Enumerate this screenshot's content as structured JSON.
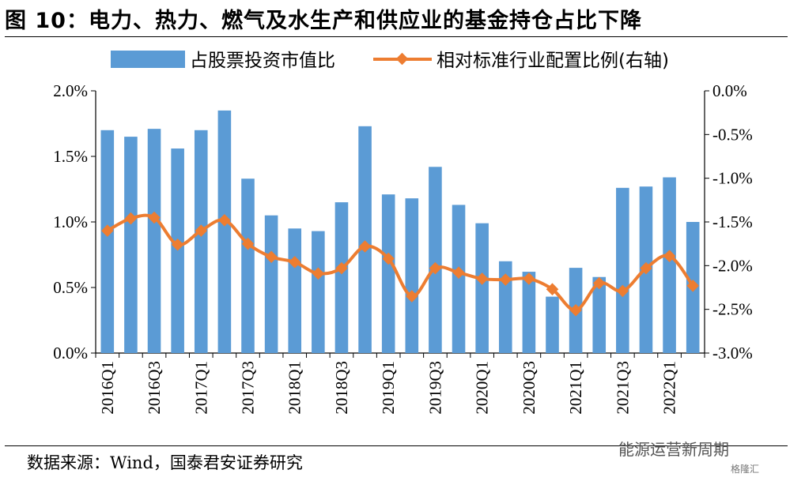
{
  "title": "图 10：电力、热力、燃气及水生产和供应业的基金持仓占比下降",
  "source": "数据来源：Wind，国泰君安证券研究",
  "watermark": "能源运营新周期",
  "watermark_logo": "格隆汇",
  "chart_data": {
    "type": "bar",
    "categories": [
      "2016Q1",
      "2016Q2",
      "2016Q3",
      "2016Q4",
      "2017Q1",
      "2017Q2",
      "2017Q3",
      "2017Q4",
      "2018Q1",
      "2018Q2",
      "2018Q3",
      "2018Q4",
      "2019Q1",
      "2019Q2",
      "2019Q3",
      "2019Q4",
      "2020Q1",
      "2020Q2",
      "2020Q3",
      "2020Q4",
      "2021Q1",
      "2021Q2",
      "2021Q3",
      "2021Q4",
      "2022Q1",
      "2022Q2"
    ],
    "x_tick_labels": [
      "2016Q1",
      "2016Q3",
      "2017Q1",
      "2017Q3",
      "2018Q1",
      "2018Q3",
      "2019Q1",
      "2019Q3",
      "2020Q1",
      "2020Q3",
      "2021Q1",
      "2021Q3",
      "2022Q1"
    ],
    "series": [
      {
        "name": "占股票投资市值比",
        "type": "bar",
        "axis": "left",
        "color": "#5B9BD5",
        "values": [
          1.7,
          1.65,
          1.71,
          1.56,
          1.7,
          1.85,
          1.33,
          1.05,
          0.95,
          0.93,
          1.15,
          1.73,
          1.21,
          1.18,
          1.42,
          1.13,
          0.99,
          0.7,
          0.62,
          0.43,
          0.65,
          0.58,
          1.26,
          1.27,
          1.34,
          1.0
        ]
      },
      {
        "name": "相对标准行业配置比例(右轴)",
        "type": "line",
        "axis": "right",
        "color": "#ED7D31",
        "values": [
          -1.6,
          -1.46,
          -1.45,
          -1.76,
          -1.6,
          -1.48,
          -1.75,
          -1.9,
          -1.96,
          -2.09,
          -2.03,
          -1.78,
          -1.92,
          -2.35,
          -2.03,
          -2.08,
          -2.15,
          -2.16,
          -2.15,
          -2.27,
          -2.51,
          -2.2,
          -2.29,
          -2.03,
          -1.89,
          -2.23
        ]
      }
    ],
    "y_left": {
      "min": 0,
      "max": 2.0,
      "ticks": [
        "0.0%",
        "0.5%",
        "1.0%",
        "1.5%",
        "2.0%"
      ]
    },
    "y_right": {
      "min": -3.0,
      "max": 0,
      "ticks": [
        "-3.0%",
        "-2.5%",
        "-2.0%",
        "-1.5%",
        "-1.0%",
        "-0.5%",
        "0.0%"
      ]
    },
    "legend_position": "top",
    "grid": false
  }
}
